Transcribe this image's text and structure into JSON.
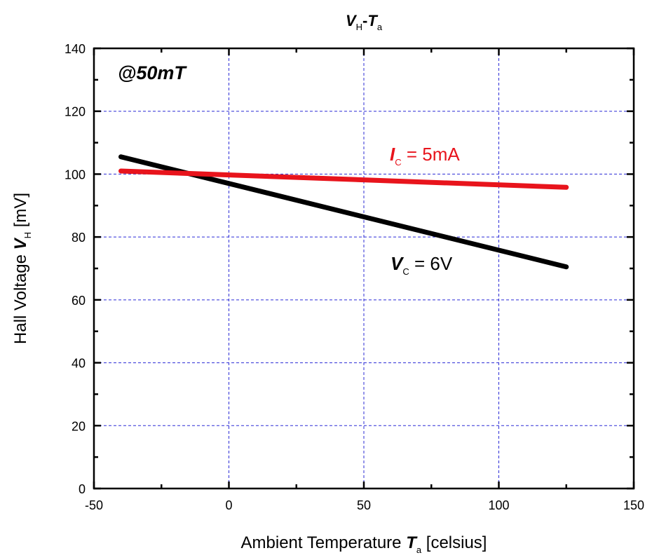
{
  "chart_data": {
    "type": "line",
    "title": {
      "main": "V",
      "main_sub": "H",
      "sep": "-",
      "second": "T",
      "second_sub": "a"
    },
    "xlabel": {
      "prefix": "Ambient Temperature ",
      "symbol": "T",
      "sub": "a",
      "suffix": " [celsius]"
    },
    "ylabel": {
      "prefix": "Hall Voltage ",
      "symbol": "V",
      "sub": "H",
      "suffix": " [mV]"
    },
    "xlim": [
      -50,
      150
    ],
    "ylim": [
      0,
      140
    ],
    "xticks": [
      -50,
      0,
      50,
      100,
      150
    ],
    "yticks": [
      0,
      20,
      40,
      60,
      80,
      100,
      120,
      140
    ],
    "grid": true,
    "annotation": "@50mT",
    "series": [
      {
        "name": "V_C = 6V",
        "label": {
          "symbol": "V",
          "sub": "C",
          "rest": " = 6V"
        },
        "color": "#000000",
        "x": [
          -40,
          125
        ],
        "y": [
          105.5,
          70.5
        ]
      },
      {
        "name": "I_C = 5mA",
        "label": {
          "symbol": "I",
          "sub": "C",
          "rest": " = 5mA"
        },
        "color": "#e8141c",
        "x": [
          -40,
          125
        ],
        "y": [
          101,
          95.8
        ]
      }
    ]
  }
}
